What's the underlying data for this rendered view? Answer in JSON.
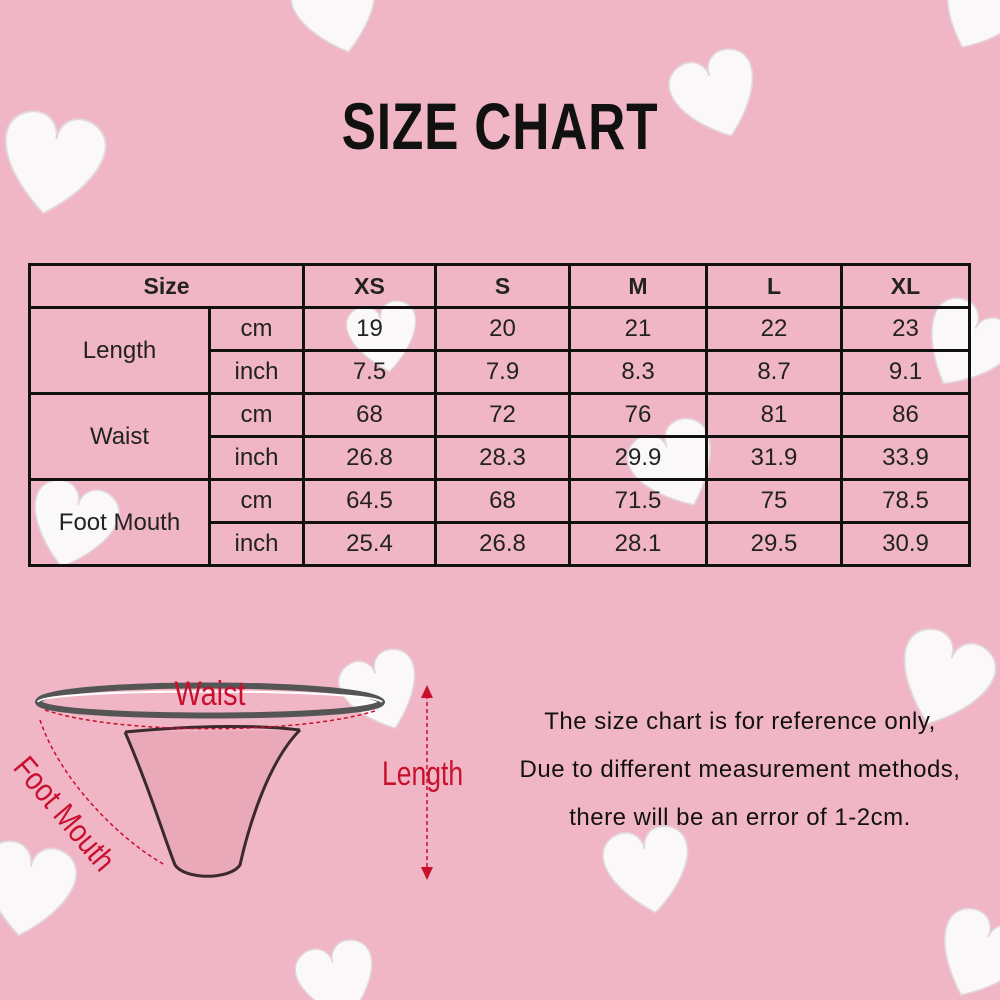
{
  "title": "SIZE CHART",
  "table": {
    "header": [
      "Size",
      "XS",
      "S",
      "M",
      "L",
      "XL"
    ],
    "groups": [
      {
        "label": "Length",
        "rows": [
          {
            "unit": "cm",
            "values": [
              "19",
              "20",
              "21",
              "22",
              "23"
            ]
          },
          {
            "unit": "inch",
            "values": [
              "7.5",
              "7.9",
              "8.3",
              "8.7",
              "9.1"
            ]
          }
        ]
      },
      {
        "label": "Waist",
        "rows": [
          {
            "unit": "cm",
            "values": [
              "68",
              "72",
              "76",
              "81",
              "86"
            ]
          },
          {
            "unit": "inch",
            "values": [
              "26.8",
              "28.3",
              "29.9",
              "31.9",
              "33.9"
            ]
          }
        ]
      },
      {
        "label": "Foot Mouth",
        "rows": [
          {
            "unit": "cm",
            "values": [
              "64.5",
              "68",
              "71.5",
              "75",
              "78.5"
            ]
          },
          {
            "unit": "inch",
            "values": [
              "25.4",
              "26.8",
              "28.1",
              "29.5",
              "30.9"
            ]
          }
        ]
      }
    ]
  },
  "diagram": {
    "waist": "Waist",
    "foot_mouth": "Foot Mouth",
    "length": "Length"
  },
  "note": [
    "The size chart is for reference only,",
    "Due to different measurement methods,",
    "there will be an error of 1-2cm."
  ]
}
